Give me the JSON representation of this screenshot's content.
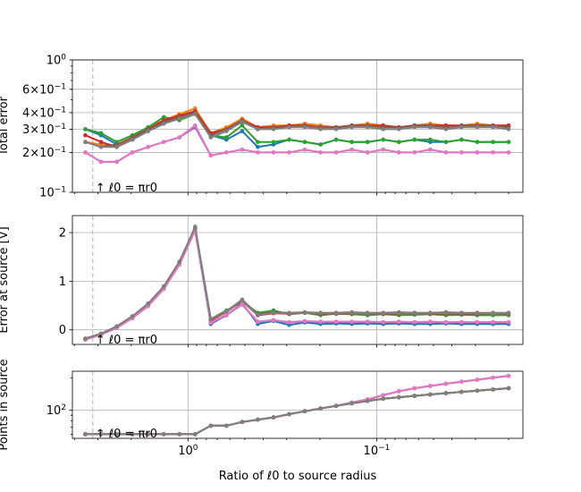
{
  "figure": {
    "xlabel": "Ratio of ℓ0 to source radius",
    "xticks": [
      "10^0",
      "10^-1"
    ],
    "annotation": "↑ ℓ0 = πr0"
  },
  "chart_data": [
    {
      "type": "line",
      "ylabel": "Total error",
      "yscale": "log",
      "ylim": [
        0.1,
        1.0
      ],
      "yticks": [
        "10^-1",
        "2 × 10^-1",
        "3 × 10^-1",
        "4 × 10^-1",
        "6 × 10^-1",
        "10^0"
      ],
      "grid": true,
      "series": [
        {
          "color": "#1f77b4",
          "values": [
            0.3,
            0.27,
            0.23,
            0.25,
            0.29,
            0.33,
            0.37,
            0.41,
            0.27,
            0.25,
            0.29,
            0.22,
            0.23,
            0.25,
            0.24,
            0.23,
            0.25,
            0.24,
            0.24,
            0.25,
            0.24,
            0.25,
            0.24,
            0.24,
            0.25,
            0.24,
            0.24,
            0.24
          ]
        },
        {
          "color": "#ff7f0e",
          "values": [
            0.24,
            0.23,
            0.22,
            0.26,
            0.31,
            0.35,
            0.39,
            0.43,
            0.28,
            0.31,
            0.36,
            0.31,
            0.32,
            0.32,
            0.33,
            0.32,
            0.31,
            0.32,
            0.33,
            0.32,
            0.31,
            0.32,
            0.33,
            0.32,
            0.32,
            0.33,
            0.32,
            0.32
          ]
        },
        {
          "color": "#2ca02c",
          "values": [
            0.3,
            0.28,
            0.24,
            0.27,
            0.31,
            0.37,
            0.35,
            0.39,
            0.27,
            0.26,
            0.32,
            0.24,
            0.24,
            0.25,
            0.24,
            0.23,
            0.25,
            0.24,
            0.24,
            0.25,
            0.24,
            0.25,
            0.25,
            0.24,
            0.25,
            0.24,
            0.24,
            0.24
          ]
        },
        {
          "color": "#d62728",
          "values": [
            0.27,
            0.24,
            0.22,
            0.25,
            0.3,
            0.35,
            0.38,
            0.41,
            0.28,
            0.3,
            0.35,
            0.31,
            0.31,
            0.32,
            0.32,
            0.31,
            0.31,
            0.32,
            0.32,
            0.32,
            0.31,
            0.32,
            0.32,
            0.32,
            0.32,
            0.32,
            0.32,
            0.32
          ]
        },
        {
          "color": "#9467bd",
          "values": [
            0.2,
            0.17,
            0.17,
            0.2,
            0.22,
            0.24,
            0.26,
            0.31,
            0.19,
            0.2,
            0.21,
            0.2,
            0.2,
            0.2,
            0.21,
            0.2,
            0.2,
            0.21,
            0.2,
            0.21,
            0.2,
            0.2,
            0.21,
            0.2,
            0.2,
            0.2,
            0.2,
            0.2
          ]
        },
        {
          "color": "#8c564b",
          "values": [
            0.24,
            0.22,
            0.23,
            0.26,
            0.3,
            0.34,
            0.37,
            0.4,
            0.27,
            0.3,
            0.35,
            0.3,
            0.31,
            0.31,
            0.32,
            0.31,
            0.31,
            0.32,
            0.32,
            0.31,
            0.31,
            0.32,
            0.32,
            0.31,
            0.32,
            0.32,
            0.32,
            0.31
          ]
        },
        {
          "color": "#e377c2",
          "values": [
            0.2,
            0.17,
            0.17,
            0.2,
            0.22,
            0.24,
            0.26,
            0.32,
            0.19,
            0.2,
            0.21,
            0.2,
            0.2,
            0.2,
            0.21,
            0.2,
            0.2,
            0.21,
            0.2,
            0.21,
            0.2,
            0.2,
            0.21,
            0.2,
            0.2,
            0.2,
            0.2,
            0.2
          ]
        },
        {
          "color": "#7f7f7f",
          "values": [
            0.24,
            0.22,
            0.22,
            0.25,
            0.29,
            0.33,
            0.36,
            0.39,
            0.26,
            0.29,
            0.34,
            0.3,
            0.3,
            0.31,
            0.31,
            0.3,
            0.3,
            0.31,
            0.31,
            0.3,
            0.3,
            0.31,
            0.31,
            0.3,
            0.31,
            0.31,
            0.31,
            0.3
          ]
        }
      ]
    },
    {
      "type": "line",
      "ylabel": "Error at source [V]",
      "yscale": "linear",
      "ylim": [
        -0.3,
        2.35
      ],
      "yticks": [
        "0",
        "1",
        "2"
      ],
      "grid": true,
      "series": [
        {
          "color": "#1f77b4",
          "values": [
            -0.2,
            -0.1,
            0.05,
            0.25,
            0.5,
            0.85,
            1.35,
            2.05,
            0.12,
            0.3,
            0.55,
            0.12,
            0.18,
            0.1,
            0.15,
            0.12,
            0.13,
            0.12,
            0.13,
            0.12,
            0.13,
            0.12,
            0.12,
            0.13,
            0.12,
            0.12,
            0.12,
            0.12
          ]
        },
        {
          "color": "#ff7f0e",
          "values": [
            -0.18,
            -0.08,
            0.06,
            0.27,
            0.53,
            0.88,
            1.4,
            2.1,
            0.2,
            0.38,
            0.6,
            0.3,
            0.35,
            0.33,
            0.35,
            0.34,
            0.33,
            0.35,
            0.34,
            0.33,
            0.34,
            0.35,
            0.33,
            0.34,
            0.34,
            0.33,
            0.34,
            0.34
          ]
        },
        {
          "color": "#2ca02c",
          "values": [
            -0.19,
            -0.09,
            0.05,
            0.26,
            0.52,
            0.87,
            1.38,
            2.08,
            0.22,
            0.4,
            0.58,
            0.35,
            0.4,
            0.32,
            0.35,
            0.3,
            0.33,
            0.32,
            0.3,
            0.32,
            0.3,
            0.31,
            0.32,
            0.3,
            0.31,
            0.3,
            0.3,
            0.3
          ]
        },
        {
          "color": "#d62728",
          "values": [
            -0.19,
            -0.08,
            0.06,
            0.27,
            0.53,
            0.88,
            1.39,
            2.09,
            0.19,
            0.37,
            0.6,
            0.3,
            0.34,
            0.33,
            0.35,
            0.33,
            0.33,
            0.34,
            0.34,
            0.33,
            0.34,
            0.34,
            0.33,
            0.34,
            0.33,
            0.33,
            0.34,
            0.33
          ]
        },
        {
          "color": "#9467bd",
          "values": [
            -0.2,
            -0.1,
            0.04,
            0.24,
            0.49,
            0.84,
            1.34,
            2.04,
            0.14,
            0.3,
            0.52,
            0.16,
            0.19,
            0.15,
            0.17,
            0.16,
            0.16,
            0.16,
            0.16,
            0.15,
            0.16,
            0.15,
            0.16,
            0.15,
            0.15,
            0.15,
            0.15,
            0.15
          ]
        },
        {
          "color": "#8c564b",
          "values": [
            -0.18,
            -0.08,
            0.07,
            0.28,
            0.54,
            0.89,
            1.4,
            2.1,
            0.22,
            0.38,
            0.62,
            0.32,
            0.36,
            0.35,
            0.36,
            0.35,
            0.35,
            0.36,
            0.35,
            0.35,
            0.36,
            0.35,
            0.35,
            0.36,
            0.35,
            0.35,
            0.35,
            0.35
          ]
        },
        {
          "color": "#e377c2",
          "values": [
            -0.2,
            -0.1,
            0.04,
            0.24,
            0.49,
            0.84,
            1.34,
            2.05,
            0.15,
            0.31,
            0.53,
            0.17,
            0.2,
            0.16,
            0.18,
            0.17,
            0.17,
            0.17,
            0.17,
            0.16,
            0.17,
            0.16,
            0.17,
            0.16,
            0.16,
            0.16,
            0.16,
            0.16
          ]
        },
        {
          "color": "#7f7f7f",
          "values": [
            -0.18,
            -0.08,
            0.07,
            0.28,
            0.54,
            0.89,
            1.4,
            2.12,
            0.21,
            0.38,
            0.61,
            0.31,
            0.35,
            0.34,
            0.35,
            0.34,
            0.34,
            0.35,
            0.34,
            0.34,
            0.35,
            0.34,
            0.34,
            0.35,
            0.34,
            0.34,
            0.34,
            0.34
          ]
        }
      ]
    },
    {
      "type": "line",
      "ylabel": "Points in source",
      "yscale": "log",
      "ylim": [
        55,
        230
      ],
      "yticks": [
        "10^2"
      ],
      "grid": true,
      "series": [
        {
          "color": "#1f77b4",
          "values": [
            60,
            60,
            60,
            60,
            60,
            60,
            60,
            60,
            72,
            72,
            78,
            82,
            86,
            92,
            98,
            104,
            110,
            118,
            126,
            138,
            150,
            160,
            168,
            176,
            184,
            192,
            200,
            208
          ]
        },
        {
          "color": "#ff7f0e",
          "values": [
            60,
            60,
            60,
            60,
            60,
            60,
            60,
            60,
            72,
            72,
            78,
            82,
            86,
            92,
            98,
            104,
            110,
            116,
            122,
            128,
            132,
            136,
            140,
            144,
            148,
            152,
            156,
            160
          ]
        },
        {
          "color": "#2ca02c",
          "values": [
            60,
            60,
            60,
            60,
            60,
            60,
            60,
            60,
            72,
            72,
            78,
            82,
            86,
            92,
            98,
            104,
            110,
            116,
            122,
            128,
            132,
            136,
            140,
            144,
            148,
            152,
            156,
            160
          ]
        },
        {
          "color": "#d62728",
          "values": [
            60,
            60,
            60,
            60,
            60,
            60,
            60,
            60,
            72,
            72,
            78,
            82,
            86,
            92,
            98,
            104,
            110,
            116,
            122,
            128,
            132,
            136,
            140,
            144,
            148,
            152,
            156,
            160
          ]
        },
        {
          "color": "#9467bd",
          "values": [
            60,
            60,
            60,
            60,
            60,
            60,
            60,
            60,
            72,
            72,
            78,
            82,
            86,
            92,
            98,
            104,
            110,
            118,
            126,
            138,
            150,
            160,
            168,
            176,
            184,
            192,
            200,
            208
          ]
        },
        {
          "color": "#8c564b",
          "values": [
            60,
            60,
            60,
            60,
            60,
            60,
            60,
            60,
            72,
            72,
            78,
            82,
            86,
            92,
            98,
            104,
            110,
            116,
            122,
            128,
            132,
            136,
            140,
            144,
            148,
            152,
            156,
            160
          ]
        },
        {
          "color": "#e377c2",
          "values": [
            60,
            60,
            60,
            60,
            60,
            60,
            60,
            60,
            72,
            72,
            78,
            82,
            86,
            92,
            98,
            104,
            110,
            118,
            126,
            138,
            150,
            160,
            168,
            176,
            184,
            192,
            200,
            208
          ]
        },
        {
          "color": "#7f7f7f",
          "values": [
            60,
            60,
            60,
            60,
            60,
            60,
            60,
            60,
            72,
            72,
            78,
            82,
            86,
            92,
            98,
            104,
            110,
            116,
            122,
            128,
            132,
            136,
            140,
            144,
            148,
            152,
            156,
            160
          ]
        }
      ]
    }
  ]
}
